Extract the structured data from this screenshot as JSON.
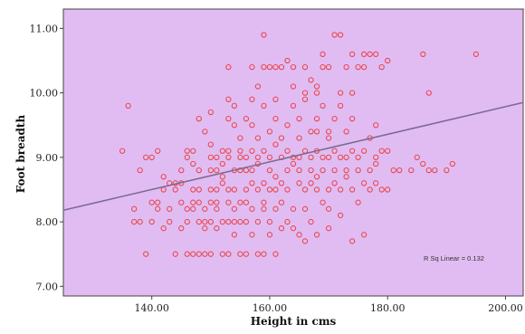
{
  "chart_data": {
    "type": "scatter",
    "title": "",
    "xlabel": "Height in cms",
    "ylabel": "Foot breadth",
    "xlim": [
      125,
      203
    ],
    "ylim": [
      6.85,
      11.3
    ],
    "x_ticks": [
      "140.00",
      "160.00",
      "180.00",
      "200.00"
    ],
    "x_tick_values": [
      140,
      160,
      180,
      200
    ],
    "y_ticks": [
      "7.00",
      "8.00",
      "9.00",
      "10.00",
      "11.00"
    ],
    "y_tick_values": [
      7,
      8,
      9,
      10,
      11
    ],
    "grid": false,
    "colors": {
      "plot_background": "#e1bcf2",
      "marker": "#e8484f",
      "fit_line": "#7a6a90"
    },
    "fit_line": {
      "label": "R Sq Linear = 0.132",
      "x": [
        125,
        203
      ],
      "y": [
        8.18,
        9.85
      ]
    },
    "series": [
      {
        "points": [
          [
            135,
            9.1
          ],
          [
            136,
            9.8
          ],
          [
            137,
            8.2
          ],
          [
            137,
            8.0
          ],
          [
            138,
            8.8
          ],
          [
            139,
            7.5
          ],
          [
            139,
            9.0
          ],
          [
            140,
            8.3
          ],
          [
            140,
            9.0
          ],
          [
            140,
            8.0
          ],
          [
            141,
            8.3
          ],
          [
            141,
            9.1
          ],
          [
            141,
            8.2
          ],
          [
            142,
            8.5
          ],
          [
            142,
            8.7
          ],
          [
            143,
            8.6
          ],
          [
            143,
            8.2
          ],
          [
            143,
            8.0
          ],
          [
            144,
            7.5
          ],
          [
            144,
            8.6
          ],
          [
            144,
            8.5
          ],
          [
            145,
            8.6
          ],
          [
            145,
            8.3
          ],
          [
            145,
            7.9
          ],
          [
            145,
            8.8
          ],
          [
            146,
            8.2
          ],
          [
            146,
            8.0
          ],
          [
            146,
            7.5
          ],
          [
            146,
            9.1
          ],
          [
            146,
            9.0
          ],
          [
            147,
            8.3
          ],
          [
            147,
            8.5
          ],
          [
            147,
            8.2
          ],
          [
            147,
            9.1
          ],
          [
            147,
            8.9
          ],
          [
            148,
            7.5
          ],
          [
            148,
            8.0
          ],
          [
            148,
            8.3
          ],
          [
            148,
            8.5
          ],
          [
            148,
            9.6
          ],
          [
            148,
            8.8
          ],
          [
            149,
            8.2
          ],
          [
            149,
            8.0
          ],
          [
            149,
            7.9
          ],
          [
            149,
            9.4
          ],
          [
            149,
            7.5
          ],
          [
            150,
            8.3
          ],
          [
            150,
            8.5
          ],
          [
            150,
            8.8
          ],
          [
            150,
            8.0
          ],
          [
            150,
            9.0
          ],
          [
            150,
            7.5
          ],
          [
            150,
            9.7
          ],
          [
            151,
            8.3
          ],
          [
            151,
            8.2
          ],
          [
            151,
            8.5
          ],
          [
            151,
            9.0
          ],
          [
            151,
            7.9
          ],
          [
            151,
            8.8
          ],
          [
            152,
            9.1
          ],
          [
            152,
            7.5
          ],
          [
            152,
            8.7
          ],
          [
            152,
            8.6
          ],
          [
            152,
            8.0
          ],
          [
            152,
            8.9
          ],
          [
            153,
            9.1
          ],
          [
            153,
            8.3
          ],
          [
            153,
            8.5
          ],
          [
            153,
            9.0
          ],
          [
            153,
            9.6
          ],
          [
            153,
            10.4
          ],
          [
            153,
            7.5
          ],
          [
            153,
            9.9
          ],
          [
            154,
            8.8
          ],
          [
            154,
            8.2
          ],
          [
            154,
            9.8
          ],
          [
            154,
            8.0
          ],
          [
            154,
            7.8
          ],
          [
            154,
            9.5
          ],
          [
            154,
            8.5
          ],
          [
            155,
            8.3
          ],
          [
            155,
            8.8
          ],
          [
            155,
            9.0
          ],
          [
            155,
            7.5
          ],
          [
            155,
            9.3
          ],
          [
            155,
            8.0
          ],
          [
            155,
            9.1
          ],
          [
            156,
            8.5
          ],
          [
            156,
            8.8
          ],
          [
            156,
            7.5
          ],
          [
            156,
            9.0
          ],
          [
            156,
            8.0
          ],
          [
            156,
            8.3
          ],
          [
            156,
            9.6
          ],
          [
            157,
            9.1
          ],
          [
            157,
            9.9
          ],
          [
            157,
            8.2
          ],
          [
            157,
            8.8
          ],
          [
            157,
            7.8
          ],
          [
            157,
            9.5
          ],
          [
            157,
            8.6
          ],
          [
            157,
            10.4
          ],
          [
            158,
            8.5
          ],
          [
            158,
            9.0
          ],
          [
            158,
            8.0
          ],
          [
            158,
            9.3
          ],
          [
            158,
            10.1
          ],
          [
            158,
            7.5
          ],
          [
            159,
            9.1
          ],
          [
            159,
            8.6
          ],
          [
            159,
            8.3
          ],
          [
            159,
            10.4
          ],
          [
            159,
            9.8
          ],
          [
            159,
            8.2
          ],
          [
            159,
            7.5
          ],
          [
            159,
            10.9
          ],
          [
            160,
            8.5
          ],
          [
            160,
            9.0
          ],
          [
            160,
            8.8
          ],
          [
            160,
            7.8
          ],
          [
            160,
            9.4
          ],
          [
            160,
            10.4
          ],
          [
            160,
            8.0
          ],
          [
            161,
            9.6
          ],
          [
            161,
            8.5
          ],
          [
            161,
            8.2
          ],
          [
            161,
            9.9
          ],
          [
            161,
            7.5
          ],
          [
            161,
            8.7
          ],
          [
            161,
            10.4
          ],
          [
            162,
            9.0
          ],
          [
            162,
            8.6
          ],
          [
            162,
            8.3
          ],
          [
            162,
            9.3
          ],
          [
            162,
            10.4
          ],
          [
            162,
            7.9
          ],
          [
            163,
            9.5
          ],
          [
            163,
            8.8
          ],
          [
            163,
            9.1
          ],
          [
            163,
            10.5
          ],
          [
            163,
            8.0
          ],
          [
            163,
            8.5
          ],
          [
            164,
            9.0
          ],
          [
            164,
            10.1
          ],
          [
            164,
            8.9
          ],
          [
            164,
            9.8
          ],
          [
            164,
            8.2
          ],
          [
            164,
            10.4
          ],
          [
            165,
            8.6
          ],
          [
            165,
            9.6
          ],
          [
            165,
            9.0
          ],
          [
            165,
            8.8
          ],
          [
            165,
            7.8
          ],
          [
            165,
            9.3
          ],
          [
            166,
            9.1
          ],
          [
            166,
            8.5
          ],
          [
            166,
            10.4
          ],
          [
            166,
            9.9
          ],
          [
            166,
            8.2
          ],
          [
            166,
            10.0
          ],
          [
            167,
            8.8
          ],
          [
            167,
            9.0
          ],
          [
            167,
            9.4
          ],
          [
            167,
            8.0
          ],
          [
            167,
            8.6
          ],
          [
            167,
            10.2
          ],
          [
            168,
            10.0
          ],
          [
            168,
            9.6
          ],
          [
            168,
            8.7
          ],
          [
            168,
            10.1
          ],
          [
            168,
            8.5
          ],
          [
            168,
            9.1
          ],
          [
            168,
            7.8
          ],
          [
            169,
            10.4
          ],
          [
            169,
            9.0
          ],
          [
            169,
            8.8
          ],
          [
            169,
            8.3
          ],
          [
            169,
            9.8
          ],
          [
            169,
            10.6
          ],
          [
            170,
            8.5
          ],
          [
            170,
            9.3
          ],
          [
            170,
            10.4
          ],
          [
            170,
            8.2
          ],
          [
            170,
            9.0
          ],
          [
            170,
            7.9
          ],
          [
            171,
            10.9
          ],
          [
            171,
            9.6
          ],
          [
            171,
            8.8
          ],
          [
            171,
            8.6
          ],
          [
            171,
            9.1
          ],
          [
            172,
            10.0
          ],
          [
            172,
            9.0
          ],
          [
            172,
            10.9
          ],
          [
            172,
            8.5
          ],
          [
            172,
            9.8
          ],
          [
            173,
            10.4
          ],
          [
            173,
            8.8
          ],
          [
            173,
            9.4
          ],
          [
            173,
            8.7
          ],
          [
            173,
            9.0
          ],
          [
            174,
            10.6
          ],
          [
            174,
            9.1
          ],
          [
            174,
            8.5
          ],
          [
            174,
            9.6
          ],
          [
            174,
            10.0
          ],
          [
            175,
            8.8
          ],
          [
            175,
            9.0
          ],
          [
            175,
            10.4
          ],
          [
            175,
            8.3
          ],
          [
            176,
            10.6
          ],
          [
            176,
            8.6
          ],
          [
            176,
            9.1
          ],
          [
            176,
            10.4
          ],
          [
            177,
            8.8
          ],
          [
            177,
            9.3
          ],
          [
            177,
            8.5
          ],
          [
            177,
            10.6
          ],
          [
            178,
            10.6
          ],
          [
            178,
            9.0
          ],
          [
            178,
            8.9
          ],
          [
            178,
            8.6
          ],
          [
            179,
            9.1
          ],
          [
            179,
            10.4
          ],
          [
            179,
            8.5
          ],
          [
            180,
            9.1
          ],
          [
            180,
            10.5
          ],
          [
            180,
            8.5
          ],
          [
            182,
            8.8
          ],
          [
            184,
            8.8
          ],
          [
            185,
            9.0
          ],
          [
            186,
            10.6
          ],
          [
            186,
            8.9
          ],
          [
            187,
            8.8
          ],
          [
            187,
            10.0
          ],
          [
            188,
            8.8
          ],
          [
            190,
            8.8
          ],
          [
            191,
            8.9
          ],
          [
            195,
            10.6
          ],
          [
            138,
            8.0
          ],
          [
            142,
            7.9
          ],
          [
            147,
            7.5
          ],
          [
            150,
            9.2
          ],
          [
            153,
            8.0
          ],
          [
            158,
            8.9
          ],
          [
            161,
            9.2
          ],
          [
            164,
            7.9
          ],
          [
            166,
            7.7
          ],
          [
            168,
            9.4
          ],
          [
            170,
            9.4
          ],
          [
            172,
            8.1
          ],
          [
            174,
            7.7
          ],
          [
            176,
            7.8
          ],
          [
            178,
            9.5
          ],
          [
            181,
            8.8
          ]
        ]
      }
    ]
  }
}
